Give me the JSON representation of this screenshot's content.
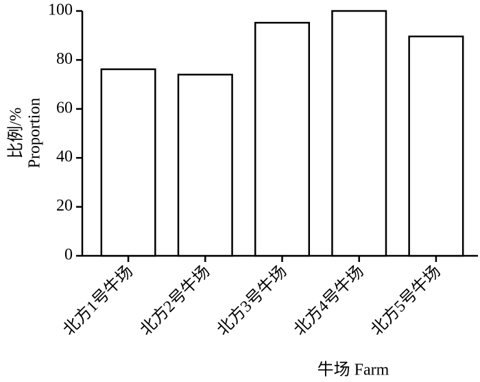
{
  "chart_data": {
    "type": "bar",
    "ylabel": [
      "比例/%",
      "Proportion"
    ],
    "xlabel": "牛场 Farm",
    "categories": [
      "北方1号牛场",
      "北方2号牛场",
      "北方3号牛场",
      "北方4号牛场",
      "北方5号牛场"
    ],
    "values": [
      76.2,
      74,
      95.2,
      100,
      89.6
    ],
    "color": "#ffffff",
    "ylim": [
      0,
      100
    ],
    "yticks": [
      0,
      20,
      40,
      60,
      80,
      100
    ]
  }
}
